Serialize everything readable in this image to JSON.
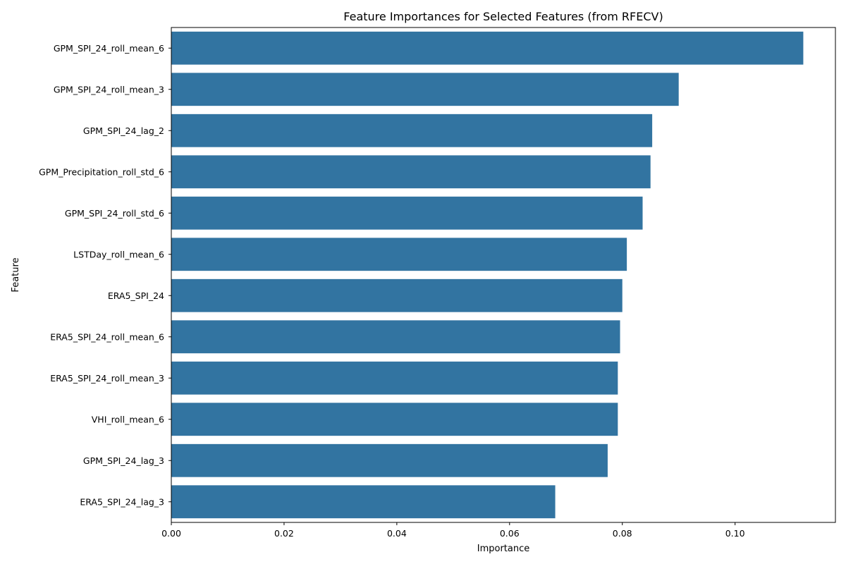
{
  "chart_data": {
    "type": "bar",
    "orientation": "horizontal",
    "title": "Feature Importances for Selected Features (from RFECV)",
    "xlabel": "Importance",
    "ylabel": "Feature",
    "xlim": [
      0,
      0.1178
    ],
    "xticks": [
      0.0,
      0.02,
      0.04,
      0.06,
      0.08,
      0.1
    ],
    "xtick_labels": [
      "0.00",
      "0.02",
      "0.04",
      "0.06",
      "0.08",
      "0.10"
    ],
    "grid": false,
    "bar_color": "#3274a1",
    "categories": [
      "GPM_SPI_24_roll_mean_6",
      "GPM_SPI_24_roll_mean_3",
      "GPM_SPI_24_lag_2",
      "GPM_Precipitation_roll_std_6",
      "GPM_SPI_24_roll_std_6",
      "LSTDay_roll_mean_6",
      "ERA5_SPI_24",
      "ERA5_SPI_24_roll_mean_6",
      "ERA5_SPI_24_roll_mean_3",
      "VHI_roll_mean_6",
      "GPM_SPI_24_lag_3",
      "ERA5_SPI_24_lag_3"
    ],
    "values": [
      0.1121,
      0.09,
      0.0853,
      0.085,
      0.0836,
      0.0808,
      0.08,
      0.0796,
      0.0792,
      0.0792,
      0.0774,
      0.0681
    ]
  }
}
